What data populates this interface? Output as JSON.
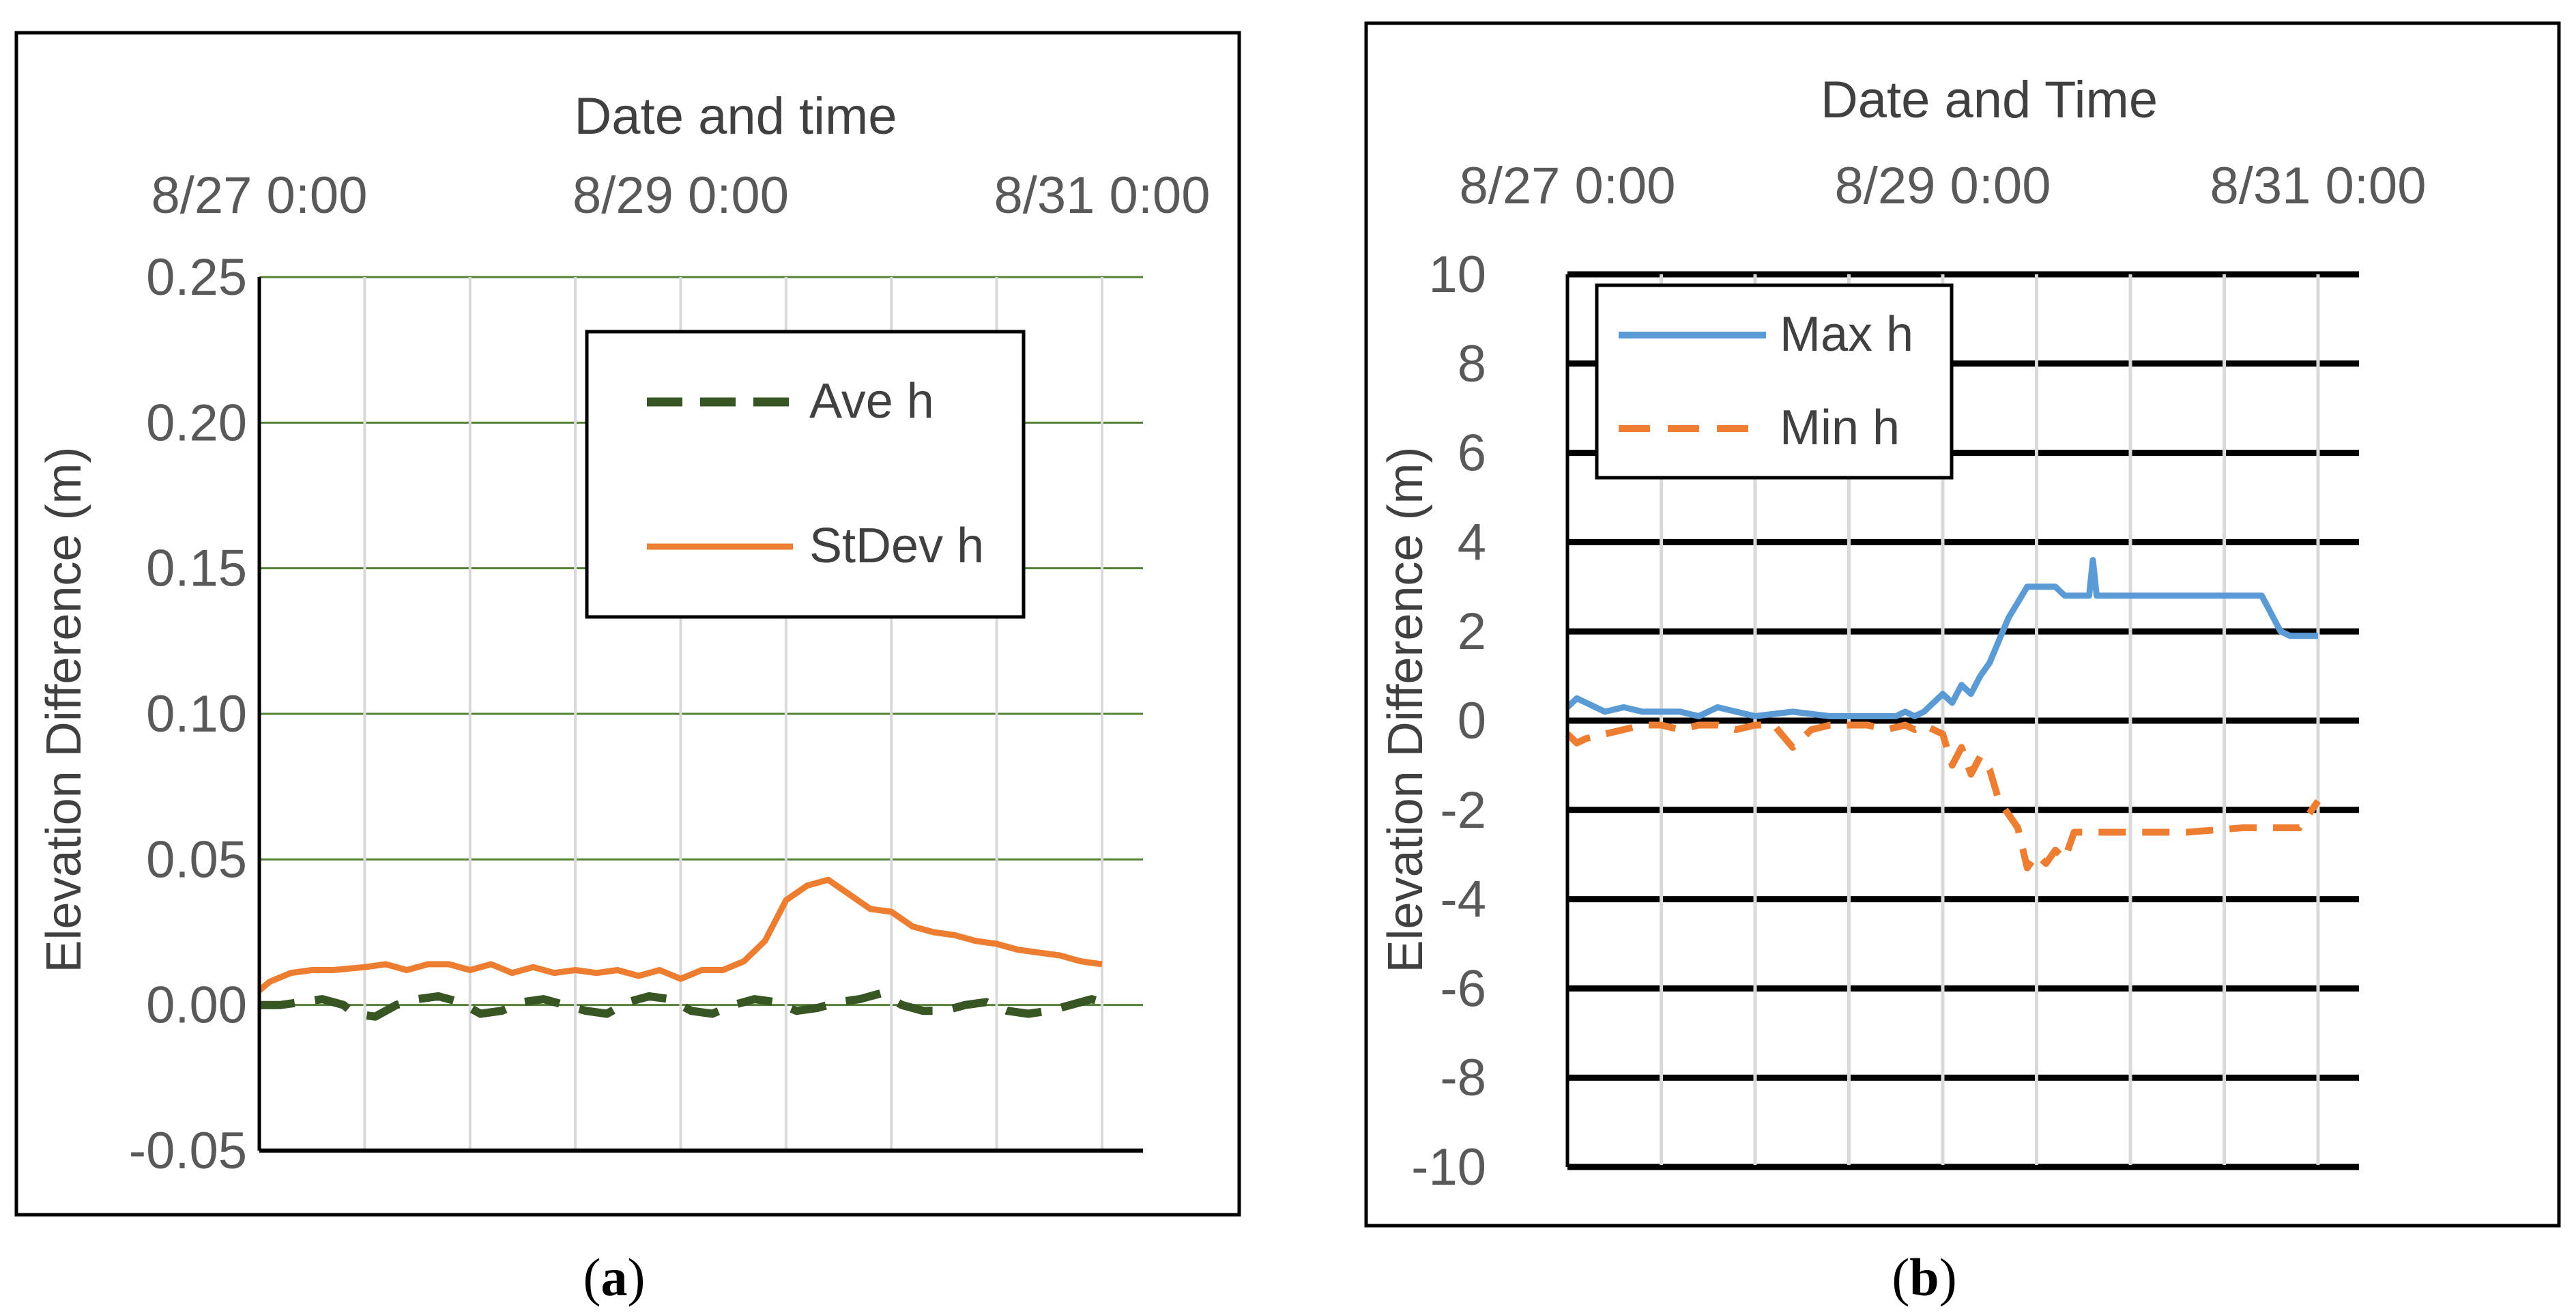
{
  "chart_data": [
    {
      "id": "a",
      "type": "line",
      "caption": "(a)",
      "caption_letter": "a",
      "title": "Date and time",
      "xlabel": "Date and time",
      "ylabel": "Elevation Difference (m)",
      "x_axis_position": "top",
      "xlim": [
        0,
        4
      ],
      "ylim": [
        -0.05,
        0.25
      ],
      "x_ticks": [
        {
          "x": 0,
          "label": "8/27 0:00"
        },
        {
          "x": 2,
          "label": "8/29 0:00"
        },
        {
          "x": 4,
          "label": "8/31 0:00"
        }
      ],
      "y_ticks": [
        {
          "y": 0.25,
          "label": "0.25"
        },
        {
          "y": 0.2,
          "label": "0.20"
        },
        {
          "y": 0.15,
          "label": "0.15"
        },
        {
          "y": 0.1,
          "label": "0.10"
        },
        {
          "y": 0.05,
          "label": "0.05"
        },
        {
          "y": 0.0,
          "label": "0.00"
        },
        {
          "y": -0.05,
          "label": "-0.05"
        }
      ],
      "grid": true,
      "legend": "top-right",
      "series": [
        {
          "name": "Ave h",
          "color": "#375623",
          "dash": "dashed",
          "x": [
            0,
            0.1,
            0.2,
            0.3,
            0.4,
            0.45,
            0.55,
            0.65,
            0.75,
            0.85,
            0.95,
            1.05,
            1.15,
            1.25,
            1.35,
            1.45,
            1.55,
            1.65,
            1.75,
            1.85,
            1.95,
            2.05,
            2.15,
            2.25,
            2.35,
            2.45,
            2.55,
            2.65,
            2.75,
            2.85,
            2.95,
            3.05,
            3.15,
            3.25,
            3.35,
            3.45,
            3.55,
            3.65,
            3.75,
            3.85,
            3.95,
            4.0
          ],
          "y": [
            0.0,
            0.0,
            0.001,
            0.002,
            0.0,
            -0.003,
            -0.004,
            0.0,
            0.002,
            0.003,
            0.001,
            -0.003,
            -0.002,
            0.001,
            0.002,
            0.0,
            -0.002,
            -0.003,
            0.001,
            0.003,
            0.002,
            -0.002,
            -0.003,
            0.0,
            0.002,
            0.001,
            -0.002,
            -0.001,
            0.001,
            0.002,
            0.004,
            0.0,
            -0.002,
            -0.002,
            0.0,
            0.001,
            -0.002,
            -0.003,
            -0.002,
            0.0,
            0.002,
            0.001
          ]
        },
        {
          "name": "StDev h",
          "color": "#ED7D31",
          "dash": "solid",
          "x": [
            0,
            0.05,
            0.15,
            0.25,
            0.35,
            0.5,
            0.6,
            0.7,
            0.8,
            0.9,
            1.0,
            1.1,
            1.2,
            1.3,
            1.4,
            1.5,
            1.6,
            1.7,
            1.8,
            1.9,
            2.0,
            2.1,
            2.2,
            2.3,
            2.4,
            2.5,
            2.6,
            2.7,
            2.8,
            2.9,
            3.0,
            3.1,
            3.2,
            3.3,
            3.4,
            3.5,
            3.6,
            3.7,
            3.8,
            3.9,
            4.0
          ],
          "y": [
            0.005,
            0.008,
            0.011,
            0.012,
            0.012,
            0.013,
            0.014,
            0.012,
            0.014,
            0.014,
            0.012,
            0.014,
            0.011,
            0.013,
            0.011,
            0.012,
            0.011,
            0.012,
            0.01,
            0.012,
            0.009,
            0.012,
            0.012,
            0.015,
            0.022,
            0.036,
            0.041,
            0.043,
            0.038,
            0.033,
            0.032,
            0.027,
            0.025,
            0.024,
            0.022,
            0.021,
            0.019,
            0.018,
            0.017,
            0.015,
            0.014
          ]
        }
      ]
    },
    {
      "id": "b",
      "type": "line",
      "caption": "(b)",
      "caption_letter": "b",
      "title": "Date and Time",
      "xlabel": "Date and Time",
      "ylabel": "Elevation Difference (m)",
      "x_axis_position": "top",
      "xlim": [
        0,
        4
      ],
      "ylim": [
        -10,
        10
      ],
      "x_ticks": [
        {
          "x": 0,
          "label": "8/27 0:00"
        },
        {
          "x": 2,
          "label": "8/29 0:00"
        },
        {
          "x": 4,
          "label": "8/31 0:00"
        }
      ],
      "y_ticks": [
        {
          "y": 10,
          "label": "10"
        },
        {
          "y": 8,
          "label": "8"
        },
        {
          "y": 6,
          "label": "6"
        },
        {
          "y": 4,
          "label": "4"
        },
        {
          "y": 2,
          "label": "2"
        },
        {
          "y": 0,
          "label": "0"
        },
        {
          "y": -2,
          "label": "-2"
        },
        {
          "y": -4,
          "label": "-4"
        },
        {
          "y": -6,
          "label": "-6"
        },
        {
          "y": -8,
          "label": "-8"
        },
        {
          "y": -10,
          "label": "-10"
        }
      ],
      "grid": true,
      "legend": "top-left",
      "series": [
        {
          "name": "Max h",
          "color": "#5B9BD5",
          "dash": "solid",
          "x": [
            0,
            0.05,
            0.1,
            0.15,
            0.2,
            0.3,
            0.4,
            0.5,
            0.6,
            0.7,
            0.8,
            0.9,
            1.0,
            1.2,
            1.4,
            1.6,
            1.7,
            1.75,
            1.8,
            1.85,
            1.9,
            1.95,
            2.0,
            2.05,
            2.1,
            2.15,
            2.2,
            2.25,
            2.3,
            2.35,
            2.45,
            2.55,
            2.6,
            2.65,
            2.75,
            2.78,
            2.8,
            2.82,
            2.85,
            3.0,
            3.2,
            3.3,
            3.35,
            3.4,
            3.5,
            3.6,
            3.7,
            3.8,
            3.85,
            3.9,
            4.0
          ],
          "y": [
            0.3,
            0.5,
            0.4,
            0.3,
            0.2,
            0.3,
            0.2,
            0.2,
            0.2,
            0.1,
            0.3,
            0.2,
            0.1,
            0.2,
            0.1,
            0.1,
            0.1,
            0.1,
            0.2,
            0.1,
            0.2,
            0.4,
            0.6,
            0.4,
            0.8,
            0.6,
            1.0,
            1.3,
            1.8,
            2.3,
            3.0,
            3.0,
            3.0,
            2.8,
            2.8,
            2.8,
            3.6,
            2.8,
            2.8,
            2.8,
            2.8,
            2.8,
            2.8,
            2.8,
            2.8,
            2.8,
            2.8,
            2.0,
            1.9,
            1.9,
            1.9
          ]
        },
        {
          "name": "Min h",
          "color": "#ED7D31",
          "dash": "dashed",
          "x": [
            0,
            0.05,
            0.1,
            0.2,
            0.3,
            0.4,
            0.5,
            0.6,
            0.7,
            0.8,
            0.9,
            1.0,
            1.1,
            1.2,
            1.3,
            1.4,
            1.5,
            1.6,
            1.7,
            1.8,
            1.85,
            1.9,
            1.95,
            2.0,
            2.05,
            2.1,
            2.15,
            2.2,
            2.25,
            2.3,
            2.35,
            2.4,
            2.45,
            2.5,
            2.55,
            2.6,
            2.65,
            2.7,
            2.75,
            3.0,
            3.3,
            3.6,
            3.9,
            4.0
          ],
          "y": [
            -0.3,
            -0.5,
            -0.4,
            -0.3,
            -0.2,
            -0.1,
            -0.1,
            -0.2,
            -0.1,
            -0.1,
            -0.2,
            -0.1,
            -0.1,
            -0.6,
            -0.2,
            -0.1,
            -0.1,
            -0.1,
            -0.2,
            -0.1,
            -0.2,
            -0.1,
            -0.2,
            -0.3,
            -1.0,
            -0.6,
            -1.2,
            -0.8,
            -1.1,
            -1.8,
            -2.1,
            -2.4,
            -3.3,
            -3.0,
            -3.2,
            -2.9,
            -3.1,
            -2.5,
            -2.5,
            -2.5,
            -2.5,
            -2.4,
            -2.4,
            -1.8
          ]
        }
      ]
    }
  ]
}
